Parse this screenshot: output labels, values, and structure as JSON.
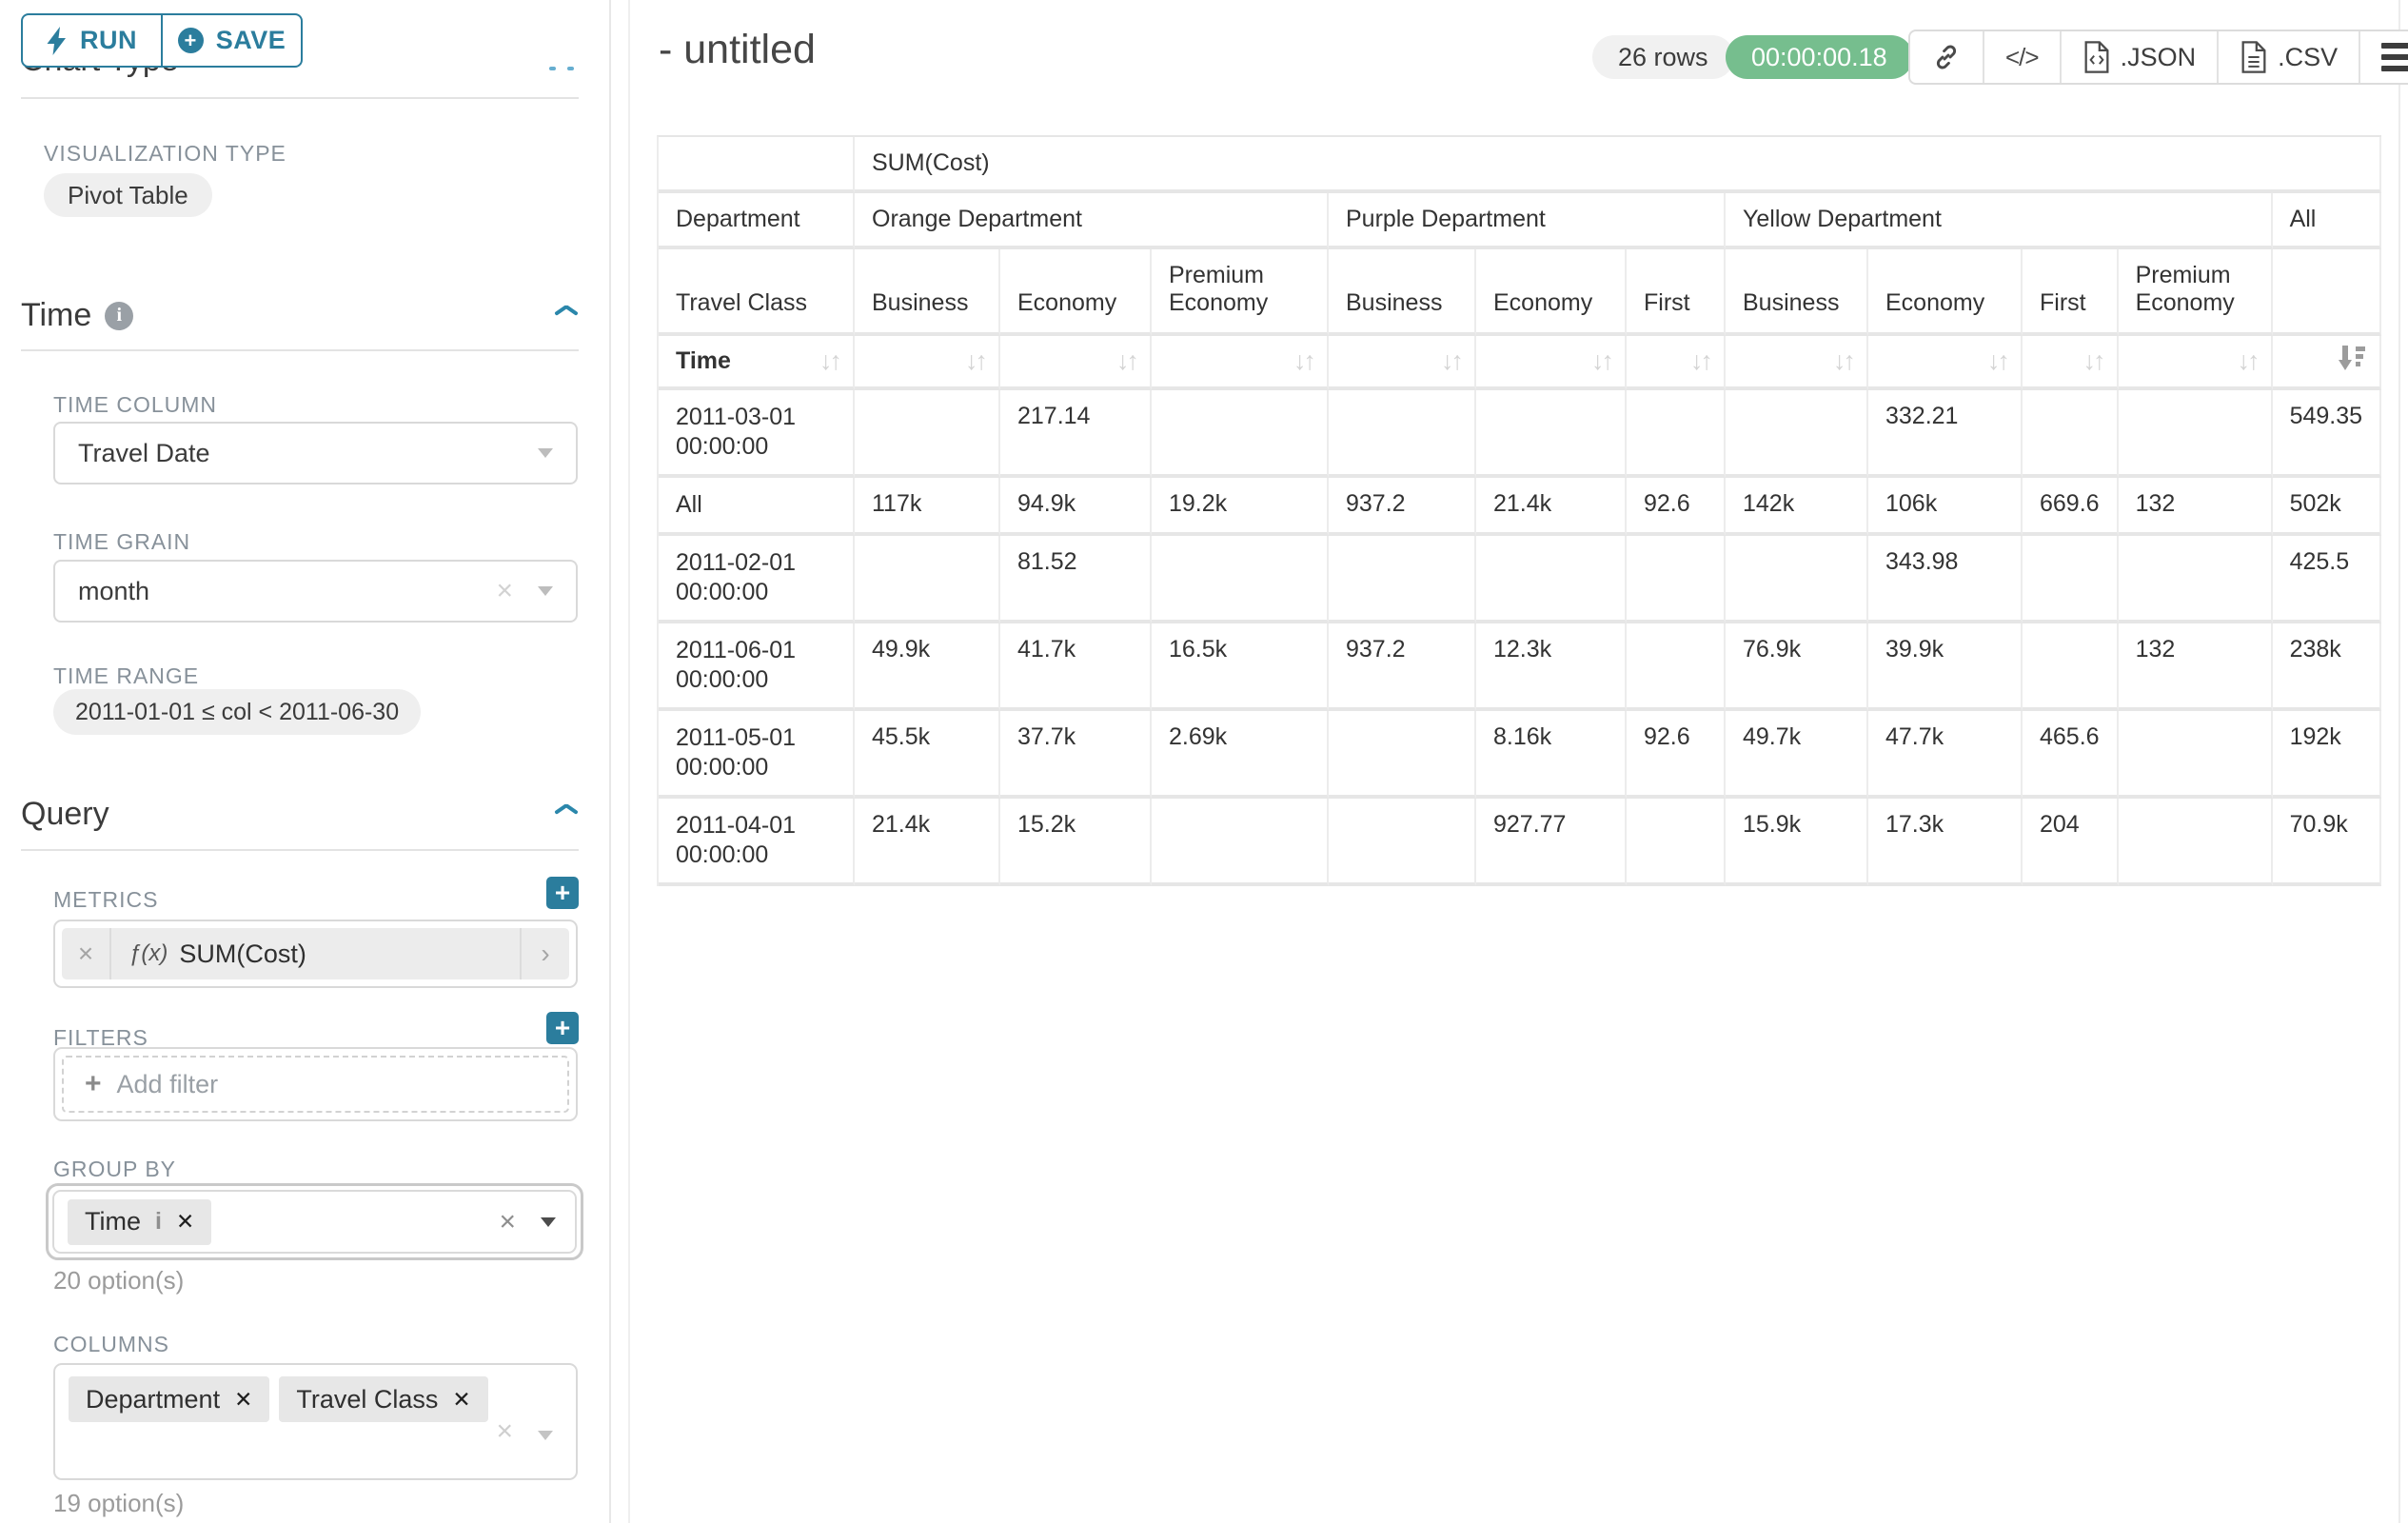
{
  "toolbar": {
    "run_label": "RUN",
    "save_label": "SAVE"
  },
  "panel": {
    "section_chart_type": {
      "title": "Chart Type",
      "viz_type_label": "VISUALIZATION TYPE",
      "viz_type_value": "Pivot Table"
    },
    "section_time": {
      "title": "Time",
      "time_column_label": "TIME COLUMN",
      "time_column_value": "Travel Date",
      "time_grain_label": "TIME GRAIN",
      "time_grain_value": "month",
      "time_range_label": "TIME RANGE",
      "time_range_value": "2011-01-01 ≤ col < 2011-06-30"
    },
    "section_query": {
      "title": "Query",
      "metrics_label": "METRICS",
      "metric_fx": "ƒ(x)",
      "metric_value": "SUM(Cost)",
      "filters_label": "FILTERS",
      "add_filter_label": "Add filter",
      "group_by_label": "GROUP BY",
      "group_by_chips": [
        {
          "label": "Time",
          "has_info": true
        }
      ],
      "group_by_options_hint": "20 option(s)",
      "columns_label": "COLUMNS",
      "columns_chips": [
        {
          "label": "Department",
          "has_info": false
        },
        {
          "label": "Travel Class",
          "has_info": false
        }
      ],
      "columns_options_hint": "19 option(s)"
    }
  },
  "header": {
    "title": "- untitled",
    "row_count": "26 rows",
    "query_time": "00:00:00.18",
    "export_json_label": ".JSON",
    "export_csv_label": ".CSV"
  },
  "colors": {
    "accent_teal": "#2b7d9d",
    "timer_green": "#76be8e"
  },
  "pivot_table": {
    "metric_label": "SUM(Cost)",
    "column_dimension": "Department",
    "row_dimension_header": "Travel Class",
    "sort_row_label": "Time",
    "column_groups": [
      {
        "label": "Orange Department",
        "columns": [
          "Business",
          "Economy",
          "Premium Economy"
        ]
      },
      {
        "label": "Purple Department",
        "columns": [
          "Business",
          "Economy",
          "First"
        ]
      },
      {
        "label": "Yellow Department",
        "columns": [
          "Business",
          "Economy",
          "First",
          "Premium Economy"
        ]
      },
      {
        "label": "All",
        "columns": [
          ""
        ]
      }
    ],
    "rows": [
      {
        "label": "2011-03-01 00:00:00",
        "values": [
          "",
          "217.14",
          "",
          "",
          "",
          "",
          "",
          "332.21",
          "",
          "",
          "549.35"
        ]
      },
      {
        "label": "All",
        "values": [
          "117k",
          "94.9k",
          "19.2k",
          "937.2",
          "21.4k",
          "92.6",
          "142k",
          "106k",
          "669.6",
          "132",
          "502k"
        ]
      },
      {
        "label": "2011-02-01 00:00:00",
        "values": [
          "",
          "81.52",
          "",
          "",
          "",
          "",
          "",
          "343.98",
          "",
          "",
          "425.5"
        ]
      },
      {
        "label": "2011-06-01 00:00:00",
        "values": [
          "49.9k",
          "41.7k",
          "16.5k",
          "937.2",
          "12.3k",
          "",
          "76.9k",
          "39.9k",
          "",
          "132",
          "238k"
        ]
      },
      {
        "label": "2011-05-01 00:00:00",
        "values": [
          "45.5k",
          "37.7k",
          "2.69k",
          "",
          "8.16k",
          "92.6",
          "49.7k",
          "47.7k",
          "465.6",
          "",
          "192k"
        ]
      },
      {
        "label": "2011-04-01 00:00:00",
        "values": [
          "21.4k",
          "15.2k",
          "",
          "",
          "927.77",
          "",
          "15.9k",
          "17.3k",
          "204",
          "",
          "70.9k"
        ]
      }
    ]
  }
}
